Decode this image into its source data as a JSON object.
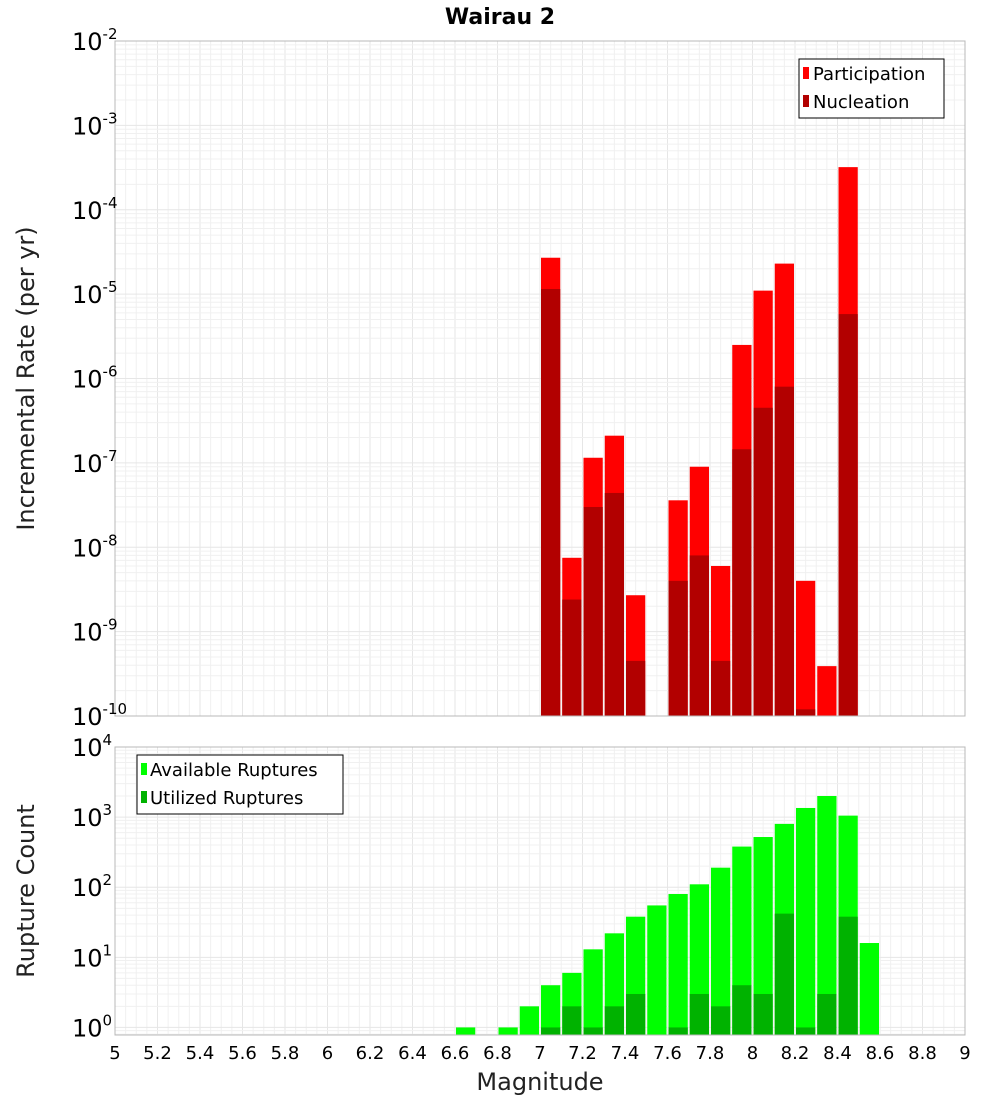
{
  "chart_data": [
    {
      "type": "bar",
      "title": "Wairau 2",
      "ylabel": "Incremental Rate (per yr)",
      "xlabel": "",
      "x_range": [
        5,
        9
      ],
      "y_scale": "log",
      "y_range": [
        1e-10,
        0.01
      ],
      "y_ticks": [
        {
          "base": "10",
          "exp": "-10"
        },
        {
          "base": "10",
          "exp": "-9"
        },
        {
          "base": "10",
          "exp": "-8"
        },
        {
          "base": "10",
          "exp": "-7"
        },
        {
          "base": "10",
          "exp": "-6"
        },
        {
          "base": "10",
          "exp": "-5"
        },
        {
          "base": "10",
          "exp": "-4"
        },
        {
          "base": "10",
          "exp": "-3"
        },
        {
          "base": "10",
          "exp": "-2"
        }
      ],
      "grid": true,
      "legend_position": "top-right",
      "bar_width": 0.1,
      "series": [
        {
          "name": "Participation",
          "color": "#ff0000",
          "x": [
            7.05,
            7.15,
            7.25,
            7.35,
            7.45,
            7.65,
            7.75,
            7.85,
            7.95,
            8.05,
            8.15,
            8.25,
            8.35,
            8.45
          ],
          "values": [
            2.7e-05,
            7.5e-09,
            1.15e-07,
            2.1e-07,
            2.7e-09,
            3.6e-08,
            9e-08,
            6e-09,
            2.5e-06,
            1.1e-05,
            2.3e-05,
            4e-09,
            3.9e-10,
            0.00032
          ]
        },
        {
          "name": "Nucleation",
          "color": "#b20000",
          "x": [
            7.05,
            7.15,
            7.25,
            7.35,
            7.45,
            7.65,
            7.75,
            7.85,
            7.95,
            8.05,
            8.15,
            8.25,
            8.45
          ],
          "values": [
            1.15e-05,
            2.4e-09,
            3e-08,
            4.4e-08,
            4.5e-10,
            4e-09,
            8e-09,
            4.5e-10,
            1.45e-07,
            4.5e-07,
            8e-07,
            1.2e-10,
            5.8e-06
          ]
        }
      ]
    },
    {
      "type": "bar",
      "title": "",
      "ylabel": "Rupture Count",
      "xlabel": "Magnitude",
      "x_range": [
        5,
        9
      ],
      "x_ticks": [
        "5",
        "5.2",
        "5.4",
        "5.6",
        "5.8",
        "6",
        "6.2",
        "6.4",
        "6.6",
        "6.8",
        "7",
        "7.2",
        "7.4",
        "7.6",
        "7.8",
        "8",
        "8.2",
        "8.4",
        "8.6",
        "8.8",
        "9"
      ],
      "y_scale": "log",
      "y_range": [
        0.78,
        10000.0
      ],
      "y_ticks": [
        {
          "base": "10",
          "exp": "0"
        },
        {
          "base": "10",
          "exp": "1"
        },
        {
          "base": "10",
          "exp": "2"
        },
        {
          "base": "10",
          "exp": "3"
        },
        {
          "base": "10",
          "exp": "4"
        }
      ],
      "grid": true,
      "legend_position": "top-left",
      "bar_width": 0.1,
      "series": [
        {
          "name": "Available Ruptures",
          "color": "#00ff00",
          "x": [
            6.65,
            6.85,
            6.95,
            7.05,
            7.15,
            7.25,
            7.35,
            7.45,
            7.55,
            7.65,
            7.75,
            7.85,
            7.95,
            8.05,
            8.15,
            8.25,
            8.35,
            8.45,
            8.55
          ],
          "values": [
            1,
            1,
            2,
            4,
            6,
            13,
            22,
            38,
            55,
            80,
            110,
            190,
            380,
            520,
            800,
            1350,
            2000,
            1050,
            16
          ]
        },
        {
          "name": "Utilized Ruptures",
          "color": "#00b200",
          "x": [
            7.05,
            7.15,
            7.25,
            7.35,
            7.45,
            7.65,
            7.75,
            7.85,
            7.95,
            8.05,
            8.15,
            8.25,
            8.35,
            8.45
          ],
          "values": [
            1,
            2,
            1,
            2,
            3,
            1,
            3,
            2,
            4,
            3,
            42,
            1,
            3,
            38
          ]
        }
      ]
    }
  ]
}
